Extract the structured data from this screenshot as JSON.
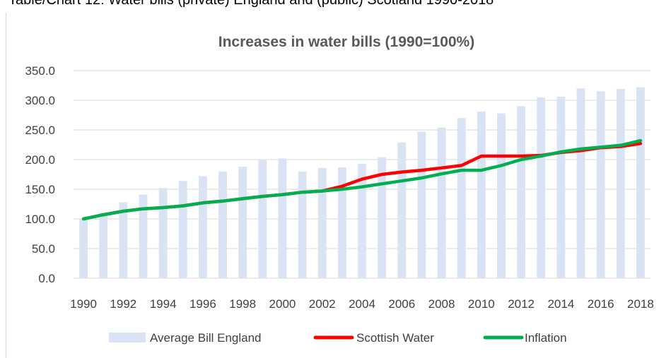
{
  "caption": "Table/Chart 12: Water bills (private) England and (public) Scotland 1990-2018",
  "chart_data": {
    "type": "bar",
    "title": "Increases in water bills (1990=100%)",
    "xlabel": "",
    "ylabel": "",
    "ylim": [
      0,
      350
    ],
    "yticks": [
      "0.0",
      "50.0",
      "100.0",
      "150.0",
      "200.0",
      "250.0",
      "300.0",
      "350.0"
    ],
    "grid": true,
    "legend_position": "bottom",
    "categories": [
      "1990",
      "1991",
      "1992",
      "1993",
      "1994",
      "1995",
      "1996",
      "1997",
      "1998",
      "1999",
      "2000",
      "2001",
      "2002",
      "2003",
      "2004",
      "2005",
      "2006",
      "2007",
      "2008",
      "2009",
      "2010",
      "2011",
      "2012",
      "2013",
      "2014",
      "2015",
      "2016",
      "2017",
      "2018"
    ],
    "xtick_labels": [
      "1990",
      "1992",
      "1994",
      "1996",
      "1998",
      "2000",
      "2002",
      "2004",
      "2006",
      "2008",
      "2010",
      "2012",
      "2014",
      "2016",
      "2018"
    ],
    "series": [
      {
        "name": "Average Bill England",
        "kind": "bar",
        "color": "#dae3f3",
        "values": [
          100,
          110,
          128,
          141,
          152,
          164,
          172,
          180,
          188,
          199,
          202,
          180,
          186,
          187,
          193,
          204,
          229,
          247,
          254,
          270,
          281,
          278,
          290,
          305,
          306,
          320,
          315,
          319,
          322
        ]
      },
      {
        "name": "Scottish Water",
        "kind": "line",
        "color": "#ff0000",
        "values": [
          100,
          107,
          113,
          117,
          119,
          122,
          127,
          130,
          134,
          138,
          141,
          145,
          147,
          155,
          167,
          175,
          179,
          182,
          186,
          190,
          206,
          206,
          206,
          207,
          212,
          215,
          220,
          222,
          227
        ]
      },
      {
        "name": "Inflation",
        "kind": "line",
        "color": "#00b050",
        "values": [
          100,
          107,
          113,
          117,
          119,
          122,
          127,
          130,
          134,
          138,
          141,
          145,
          147,
          150,
          154,
          159,
          164,
          169,
          176,
          182,
          182,
          190,
          200,
          206,
          213,
          218,
          221,
          224,
          232
        ]
      }
    ]
  }
}
